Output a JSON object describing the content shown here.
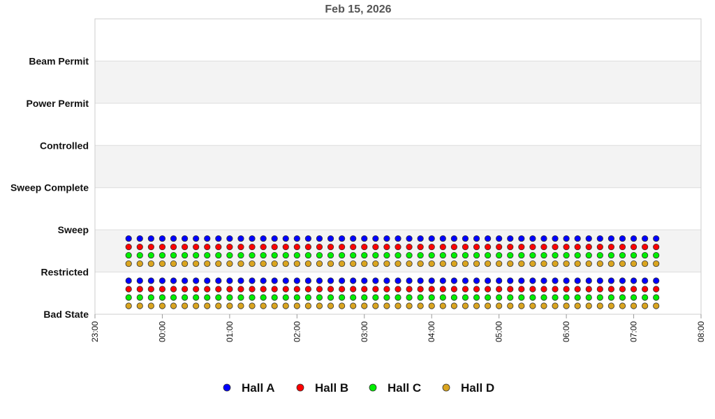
{
  "chart_data": {
    "type": "scatter",
    "title": "Feb 15, 2026",
    "xlabel": "",
    "ylabel": "",
    "x_ticks": [
      "23:00",
      "00:00",
      "01:00",
      "02:00",
      "03:00",
      "04:00",
      "05:00",
      "06:00",
      "07:00",
      "08:00"
    ],
    "xlim": [
      "23:00",
      "08:00"
    ],
    "y_categories": [
      "Bad State",
      "Restricted",
      "Sweep",
      "Sweep Complete",
      "Controlled",
      "Power Permit",
      "Beam Permit"
    ],
    "band_colors": [
      "#ffffff",
      "#f3f3f3"
    ],
    "legend_position": "bottom",
    "series": [
      {
        "name": "Hall A",
        "color": "#0000ff",
        "states": [
          "Bad State",
          "Restricted"
        ],
        "x_start": "23:30",
        "x_end": "07:25",
        "interval_min": 10
      },
      {
        "name": "Hall B",
        "color": "#ff0000",
        "states": [
          "Bad State",
          "Restricted"
        ],
        "x_start": "23:30",
        "x_end": "07:25",
        "interval_min": 10
      },
      {
        "name": "Hall C",
        "color": "#00ee00",
        "states": [
          "Bad State",
          "Restricted"
        ],
        "x_start": "23:30",
        "x_end": "07:25",
        "interval_min": 10
      },
      {
        "name": "Hall D",
        "color": "#daa520",
        "states": [
          "Bad State",
          "Restricted"
        ],
        "x_start": "23:30",
        "x_end": "07:25",
        "interval_min": 10
      }
    ]
  }
}
